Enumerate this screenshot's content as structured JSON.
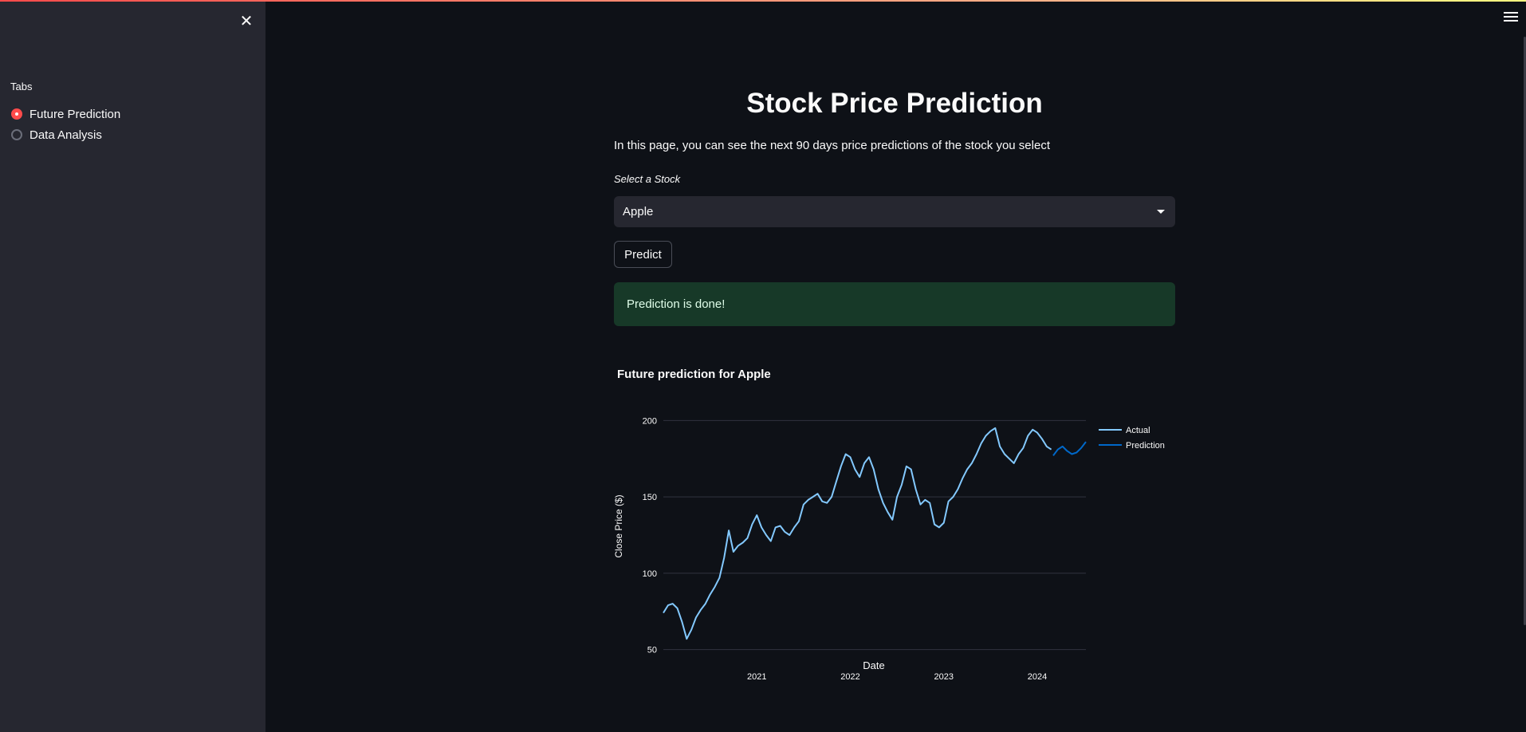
{
  "sidebar": {
    "tabs_label": "Tabs",
    "options": [
      {
        "label": "Future Prediction",
        "selected": true
      },
      {
        "label": "Data Analysis",
        "selected": false
      }
    ]
  },
  "main": {
    "title": "Stock Price Prediction",
    "intro": "In this page, you can see the next 90 days price predictions of the stock you select",
    "select_label": "Select a Stock",
    "selected_stock": "Apple",
    "predict_label": "Predict",
    "success_message": "Prediction is done!"
  },
  "colors": {
    "accent": "#ff4b4b",
    "actual_line": "#83c9ff",
    "prediction_line": "#0068c9",
    "success_bg": "#173928"
  },
  "chart_data": {
    "type": "line",
    "title": "Future prediction for Apple",
    "xlabel": "Date",
    "ylabel": "Close Price ($)",
    "x_ticks": [
      "2021",
      "2022",
      "2023",
      "2024"
    ],
    "y_ticks": [
      50,
      100,
      150,
      200
    ],
    "xlim": [
      2020.0,
      2024.52
    ],
    "ylim": [
      43,
      208
    ],
    "grid": true,
    "legend_position": "top-right",
    "series": [
      {
        "name": "Actual",
        "x": [
          2020.0,
          2020.05,
          2020.1,
          2020.15,
          2020.2,
          2020.25,
          2020.3,
          2020.35,
          2020.4,
          2020.45,
          2020.5,
          2020.55,
          2020.6,
          2020.65,
          2020.7,
          2020.75,
          2020.8,
          2020.85,
          2020.9,
          2020.95,
          2021.0,
          2021.05,
          2021.1,
          2021.15,
          2021.2,
          2021.25,
          2021.3,
          2021.35,
          2021.4,
          2021.45,
          2021.5,
          2021.55,
          2021.6,
          2021.65,
          2021.7,
          2021.75,
          2021.8,
          2021.85,
          2021.9,
          2021.95,
          2022.0,
          2022.05,
          2022.1,
          2022.15,
          2022.2,
          2022.25,
          2022.3,
          2022.35,
          2022.4,
          2022.45,
          2022.5,
          2022.55,
          2022.6,
          2022.65,
          2022.7,
          2022.75,
          2022.8,
          2022.85,
          2022.9,
          2022.95,
          2023.0,
          2023.05,
          2023.1,
          2023.15,
          2023.2,
          2023.25,
          2023.3,
          2023.35,
          2023.4,
          2023.45,
          2023.5,
          2023.55,
          2023.6,
          2023.65,
          2023.7,
          2023.75,
          2023.8,
          2023.85,
          2023.9,
          2023.95,
          2024.0,
          2024.05,
          2024.1,
          2024.15
        ],
        "values": [
          74,
          79,
          80,
          77,
          68,
          57,
          63,
          71,
          76,
          80,
          86,
          91,
          97,
          110,
          128,
          114,
          118,
          120,
          123,
          132,
          138,
          130,
          125,
          121,
          130,
          131,
          127,
          125,
          130,
          134,
          145,
          148,
          150,
          152,
          147,
          146,
          150,
          160,
          170,
          178,
          176,
          168,
          163,
          172,
          176,
          168,
          155,
          146,
          140,
          135,
          150,
          158,
          170,
          168,
          155,
          145,
          148,
          146,
          132,
          130,
          133,
          147,
          150,
          155,
          162,
          168,
          172,
          178,
          185,
          190,
          193,
          195,
          183,
          178,
          175,
          172,
          178,
          182,
          190,
          194,
          192,
          188,
          183,
          181
        ]
      },
      {
        "name": "Prediction",
        "x": [
          2024.17,
          2024.22,
          2024.27,
          2024.32,
          2024.37,
          2024.42,
          2024.47,
          2024.52
        ],
        "values": [
          177,
          181,
          183,
          180,
          178,
          179,
          182,
          186
        ]
      }
    ]
  }
}
